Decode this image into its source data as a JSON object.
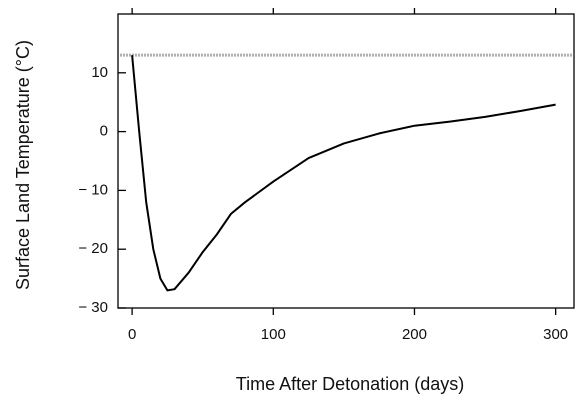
{
  "chart_data": {
    "type": "line",
    "xlabel": "Time After Detonation (days)",
    "ylabel": "Surface Land Temperature (°C)",
    "x": [
      0,
      5,
      10,
      15,
      20,
      25,
      30,
      40,
      50,
      60,
      70,
      80,
      100,
      125,
      150,
      175,
      200,
      225,
      250,
      275,
      300
    ],
    "series": [
      {
        "color": "#000000",
        "values": [
          13,
          0,
          -12,
          -20,
          -25,
          -27,
          -26.8,
          -24,
          -20.5,
          -17.5,
          -14,
          -12,
          -8.5,
          -4.5,
          -2,
          -0.3,
          1,
          1.7,
          2.5,
          3.5,
          4.6
        ]
      }
    ],
    "reference_line": {
      "value": 13,
      "color": "#b0b0b0"
    },
    "xlim": [
      -10,
      313
    ],
    "ylim": [
      -30,
      20
    ],
    "xticks": [
      0,
      100,
      200,
      300
    ],
    "yticks": [
      {
        "value": -30,
        "label": "− 30"
      },
      {
        "value": -20,
        "label": "− 20"
      },
      {
        "value": -10,
        "label": "− 10"
      },
      0,
      10
    ]
  }
}
